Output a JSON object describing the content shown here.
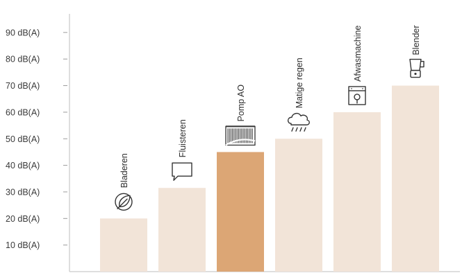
{
  "chart_data": {
    "type": "bar",
    "title": "",
    "xlabel": "",
    "ylabel": "",
    "ylim": [
      0,
      100
    ],
    "yticks": [
      10,
      20,
      30,
      40,
      50,
      60,
      70,
      80,
      90
    ],
    "ytick_labels": [
      "10 dB(A)",
      "20 dB(A)",
      "30 dB(A)",
      "40 dB(A)",
      "50 dB(A)",
      "60 dB(A)",
      "70 dB(A)",
      "80 dB(A)",
      "90 dB(A)"
    ],
    "categories": [
      "Bladeren",
      "Fluisteren",
      "Pomp AO",
      "Matige regen",
      "Afwasmachine",
      "Blender"
    ],
    "values": [
      20,
      31.5,
      45,
      50,
      60,
      70
    ],
    "icons": [
      "leaf-icon",
      "speech-bubble-icon",
      "pump-unit-icon",
      "rain-cloud-icon",
      "dishwasher-icon",
      "blender-icon"
    ],
    "highlight_index": 2,
    "grid": false,
    "colors": {
      "bar": "#f2e4d8",
      "highlight": "#dca675",
      "axis": "#c9c9c9",
      "text": "#3a3a3a"
    }
  }
}
